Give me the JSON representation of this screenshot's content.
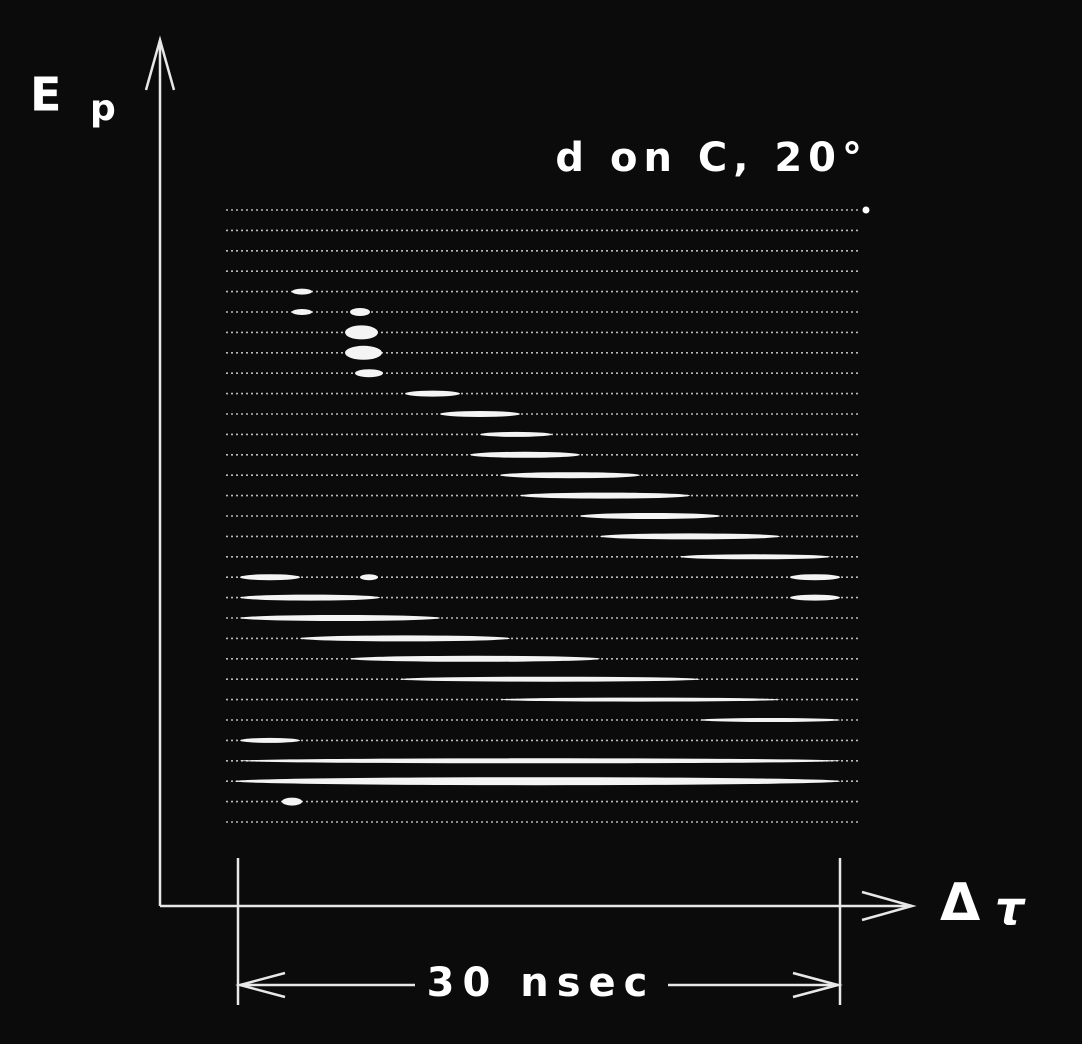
{
  "y_axis_label": {
    "main": "E",
    "sub": "p"
  },
  "annotation": "d on C, 20°",
  "x_axis_label": {
    "main": "Δ",
    "sub": "τ"
  },
  "scale_bar": {
    "label": "30 nsec"
  }
}
